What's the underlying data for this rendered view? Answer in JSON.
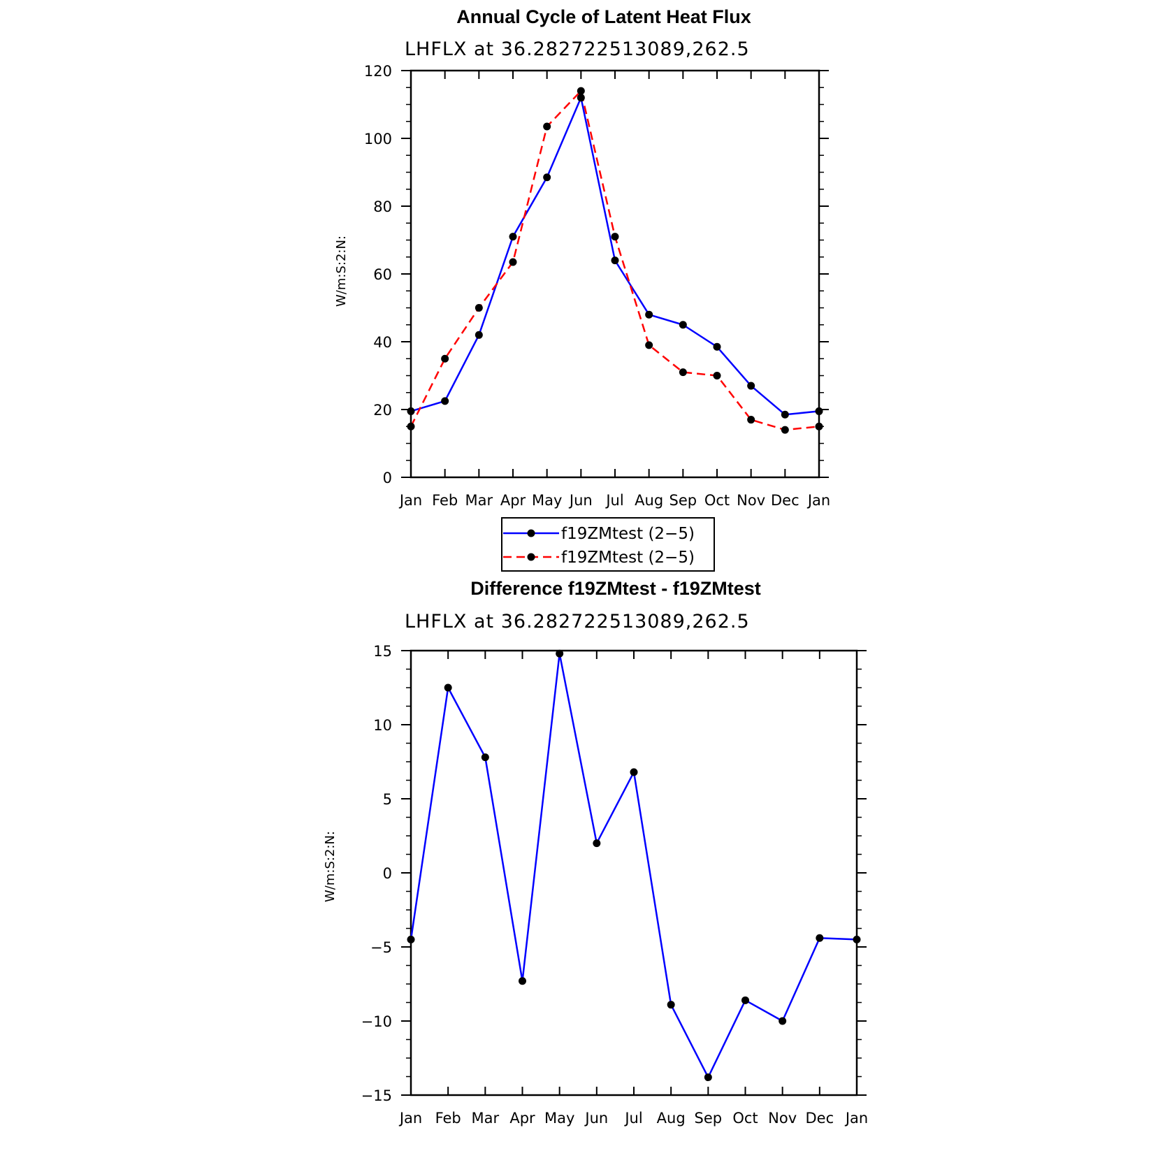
{
  "colors": {
    "series_solid": "#0000ff",
    "series_dashed": "#ff0000",
    "marker": "#000000",
    "axis": "#000000"
  },
  "chart_data": [
    {
      "type": "line",
      "title": "Annual Cycle of Latent Heat Flux",
      "subtitle": "LHFLX at 36.282722513089,262.5",
      "ylabel": "W/m:S:2:N:",
      "xlabel": "",
      "categories": [
        "Jan",
        "Feb",
        "Mar",
        "Apr",
        "May",
        "Jun",
        "Jul",
        "Aug",
        "Sep",
        "Oct",
        "Nov",
        "Dec",
        "Jan"
      ],
      "ylim": [
        0,
        120
      ],
      "yticks": [
        0,
        20,
        40,
        60,
        80,
        100,
        120
      ],
      "ytick_labels": [
        "0",
        "20",
        "40",
        "60",
        "80",
        "100",
        "120"
      ],
      "grid": false,
      "legend_position": "below",
      "series": [
        {
          "name": "f19ZMtest (2−5)",
          "style": "solid",
          "color": "#0000ff",
          "values": [
            19.5,
            22.5,
            42,
            71,
            88.5,
            112,
            64,
            48,
            45,
            38.5,
            27,
            18.5,
            19.5
          ]
        },
        {
          "name": "f19ZMtest (2−5)",
          "style": "dashed",
          "color": "#ff0000",
          "values": [
            15,
            35,
            50,
            63.5,
            103.5,
            114,
            71,
            39,
            31,
            30,
            17,
            14,
            15
          ]
        }
      ]
    },
    {
      "type": "line",
      "title": "Difference f19ZMtest - f19ZMtest",
      "subtitle": "LHFLX at 36.282722513089,262.5",
      "ylabel": "W/m:S:2:N:",
      "xlabel": "",
      "categories": [
        "Jan",
        "Feb",
        "Mar",
        "Apr",
        "May",
        "Jun",
        "Jul",
        "Aug",
        "Sep",
        "Oct",
        "Nov",
        "Dec",
        "Jan"
      ],
      "ylim": [
        -15,
        15
      ],
      "yticks": [
        -15,
        -10,
        -5,
        0,
        5,
        10,
        15
      ],
      "ytick_labels": [
        "−15",
        "−10",
        "−5",
        "0",
        "5",
        "10",
        "15"
      ],
      "grid": false,
      "series": [
        {
          "style": "solid",
          "color": "#0000ff",
          "values": [
            -4.5,
            12.5,
            7.8,
            -7.3,
            14.8,
            2,
            6.8,
            -8.9,
            -13.8,
            -8.6,
            -10,
            -4.4,
            -4.5
          ]
        }
      ]
    }
  ]
}
